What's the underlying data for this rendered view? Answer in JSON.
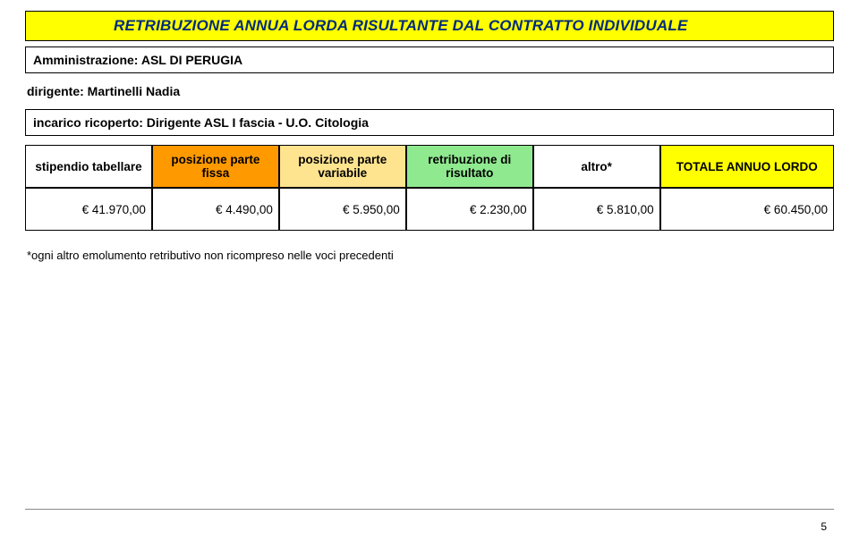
{
  "title": "RETRIBUZIONE ANNUA LORDA RISULTANTE DAL CONTRATTO INDIVIDUALE",
  "admin_label": "Amministrazione: ASL DI PERUGIA",
  "dirigente_label": "dirigente: Martinelli Nadia",
  "incarico_label": "incarico ricoperto: Dirigente ASL I fascia - U.O. Citologia",
  "headers": {
    "stipendio": "stipendio tabellare",
    "fissa": "posizione parte fissa",
    "variabile": "posizione parte variabile",
    "risultato": "retribuzione di risultato",
    "altro": "altro*",
    "totale": "TOTALE ANNUO LORDO"
  },
  "values": {
    "stipendio": "€ 41.970,00",
    "fissa": "€ 4.490,00",
    "variabile": "€ 5.950,00",
    "risultato": "€ 2.230,00",
    "altro": "€ 5.810,00",
    "totale": "€ 60.450,00"
  },
  "footnote": "*ogni altro emolumento retributivo non ricompreso nelle voci precedenti",
  "page_number": "5",
  "colors": {
    "title_bg": "#ffff00",
    "title_fg": "#002b7a",
    "hdr_fissa_bg": "#ff9900",
    "hdr_variabile_bg": "#ffe48f",
    "hdr_risultato_bg": "#8fea8f",
    "hdr_totale_bg": "#ffff00",
    "border": "#000000"
  }
}
